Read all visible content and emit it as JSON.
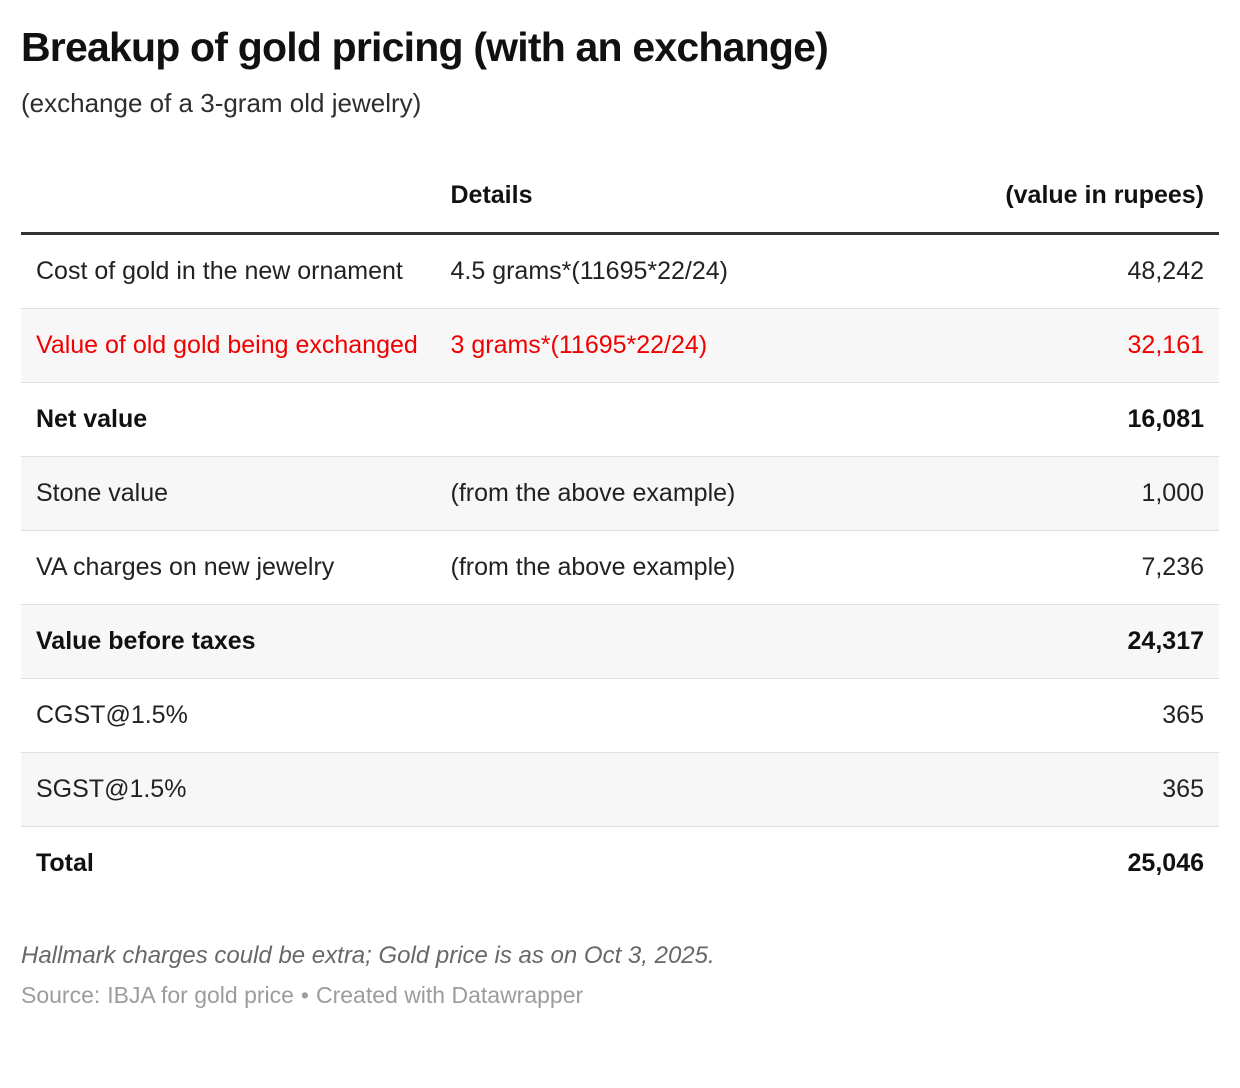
{
  "header": {
    "title": "Breakup of gold pricing (with an exchange)",
    "subtitle": "(exchange of a 3-gram old jewelry)"
  },
  "table": {
    "columns": [
      "",
      "Details",
      "(value in rupees)"
    ],
    "rows": [
      {
        "label": "Cost of gold in the new ornament",
        "details": "4.5 grams*(11695*22/24)",
        "value": "48,242",
        "bold": false,
        "red": false,
        "shaded": false
      },
      {
        "label": "Value of old gold being exchanged",
        "details": "3 grams*(11695*22/24)",
        "value": "32,161",
        "bold": false,
        "red": true,
        "shaded": true
      },
      {
        "label": "Net value",
        "details": "",
        "value": "16,081",
        "bold": true,
        "red": false,
        "shaded": false
      },
      {
        "label": "Stone value",
        "details": "(from the above example)",
        "value": "1,000",
        "bold": false,
        "red": false,
        "shaded": true
      },
      {
        "label": "VA charges on new jewelry",
        "details": "(from the above example)",
        "value": "7,236",
        "bold": false,
        "red": false,
        "shaded": false
      },
      {
        "label": "Value before taxes",
        "details": "",
        "value": "24,317",
        "bold": true,
        "red": false,
        "shaded": true
      },
      {
        "label": "CGST@1.5%",
        "details": "",
        "value": "365",
        "bold": false,
        "red": false,
        "shaded": false
      },
      {
        "label": "SGST@1.5%",
        "details": "",
        "value": "365",
        "bold": false,
        "red": false,
        "shaded": true
      },
      {
        "label": "Total",
        "details": "",
        "value": "25,046",
        "bold": true,
        "red": false,
        "shaded": false
      }
    ]
  },
  "footer": {
    "note": "Hallmark charges could be extra; Gold price is as on Oct 3, 2025.",
    "source_label": "Source:",
    "source_name": "IBJA for gold price",
    "separator": "•",
    "attribution": "Created with Datawrapper"
  },
  "colors": {
    "highlight_red": "#f20000",
    "stripe_gray": "#f7f7f7",
    "header_rule": "#333333",
    "row_rule": "#e0e0e0"
  },
  "chart_data": {
    "type": "table",
    "title": "Breakup of gold pricing (with an exchange)",
    "subtitle": "(exchange of a 3-gram old jewelry)",
    "columns": [
      "",
      "Details",
      "(value in rupees)"
    ],
    "rows": [
      [
        "Cost of gold in the new ornament",
        "4.5 grams*(11695*22/24)",
        48242
      ],
      [
        "Value of old gold being exchanged",
        "3 grams*(11695*22/24)",
        32161
      ],
      [
        "Net value",
        "",
        16081
      ],
      [
        "Stone value",
        "(from the above example)",
        1000
      ],
      [
        "VA charges on new jewelry",
        "(from the above example)",
        7236
      ],
      [
        "Value before taxes",
        "",
        24317
      ],
      [
        "CGST@1.5%",
        "",
        365
      ],
      [
        "SGST@1.5%",
        "",
        365
      ],
      [
        "Total",
        "",
        25046
      ]
    ],
    "notes": "Hallmark charges could be extra; Gold price is as on Oct 3, 2025.",
    "source": "IBJA for gold price",
    "attribution": "Created with Datawrapper"
  }
}
